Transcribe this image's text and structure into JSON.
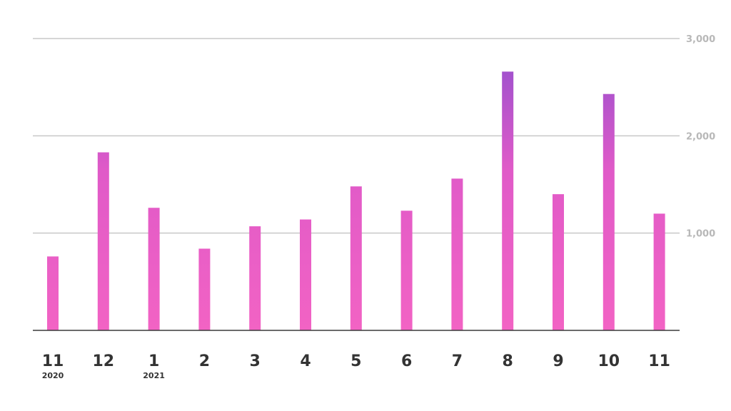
{
  "chart_data": {
    "type": "bar",
    "categories": [
      "11",
      "12",
      "1",
      "2",
      "3",
      "4",
      "5",
      "6",
      "7",
      "8",
      "9",
      "10",
      "11"
    ],
    "category_sublabels": [
      "2020",
      "",
      "2021",
      "",
      "",
      "",
      "",
      "",
      "",
      "",
      "",
      "",
      ""
    ],
    "values": [
      760,
      1830,
      1260,
      840,
      1070,
      1140,
      1480,
      1230,
      1560,
      2660,
      1400,
      2430,
      1200
    ],
    "ylim": [
      0,
      3000
    ],
    "yticks": [
      1000,
      2000,
      3000
    ],
    "ytick_labels": [
      "1,000",
      "2,000",
      "3,000"
    ],
    "y_axis_position": "right",
    "grid": true,
    "legend": "none",
    "title": "",
    "xlabel": "",
    "ylabel": "",
    "colors": {
      "gradient_low": "#f263c4",
      "gradient_high": "#8f4fcf",
      "grid": "#c8c8c8",
      "baseline": "#3a3a3a",
      "tick_text": "#333333",
      "ytick_text": "#b8b8b8"
    }
  }
}
